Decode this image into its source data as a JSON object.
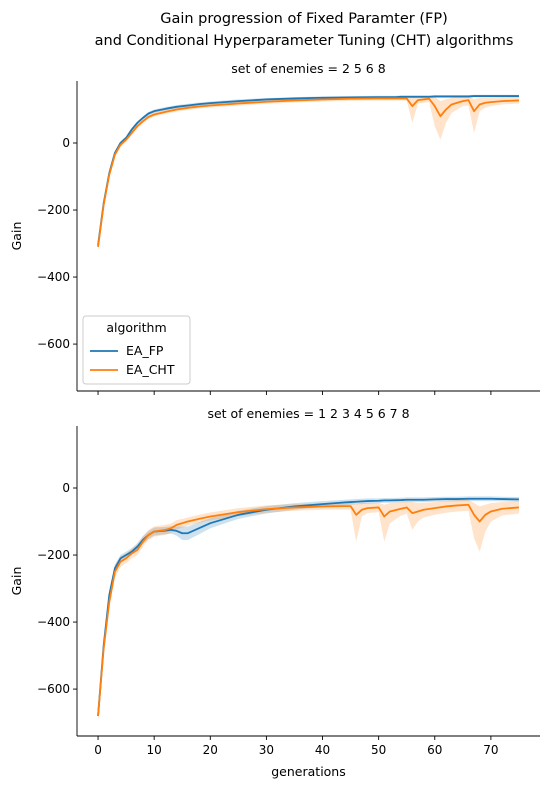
{
  "figure": {
    "title_line1": "Gain progression of Fixed Paramter (FP)",
    "title_line2": "and Conditional Hyperparameter Tuning (CHT) algorithms"
  },
  "legend": {
    "title": "algorithm",
    "placement": "lower-left (top panel)",
    "entries": [
      {
        "label": "EA_FP",
        "color": "#1f77b4"
      },
      {
        "label": "EA_CHT",
        "color": "#ff7f0e"
      }
    ]
  },
  "chart_data": [
    {
      "type": "line",
      "title": "set of enemies   = 2 5 6 8",
      "xlabel": "",
      "ylabel": "Gain",
      "xlim": [
        -3.75,
        78.75
      ],
      "ylim": [
        -740,
        185
      ],
      "yticks": [
        -600,
        -400,
        -200,
        0
      ],
      "yticklabels": [
        "−600",
        "−400",
        "−200",
        "0"
      ],
      "xticks": [
        0,
        10,
        20,
        30,
        40,
        50,
        60,
        70
      ],
      "xticklabels_visible": false,
      "grid": false,
      "x": [
        0,
        1,
        2,
        3,
        4,
        5,
        6,
        7,
        8,
        9,
        10,
        12,
        14,
        16,
        18,
        20,
        25,
        30,
        35,
        40,
        45,
        50,
        53,
        54,
        55,
        56,
        57,
        58,
        59,
        60,
        61,
        62,
        63,
        64,
        65,
        66,
        67,
        68,
        69,
        70,
        72,
        75
      ],
      "series": [
        {
          "name": "EA_FP",
          "color": "#1f77b4",
          "values": [
            -305,
            -180,
            -90,
            -30,
            0,
            15,
            40,
            60,
            75,
            88,
            95,
            102,
            108,
            112,
            116,
            119,
            125,
            130,
            133,
            135,
            136,
            137,
            137,
            138,
            138,
            138,
            138,
            138,
            138,
            139,
            139,
            139,
            139,
            139,
            139,
            139,
            140,
            140,
            140,
            140,
            140,
            140
          ],
          "ci_lower": [
            -312,
            -190,
            -98,
            -36,
            -6,
            10,
            35,
            55,
            70,
            83,
            90,
            97,
            103,
            107,
            111,
            114,
            120,
            126,
            129,
            131,
            132,
            133,
            133,
            134,
            134,
            134,
            134,
            134,
            134,
            135,
            135,
            135,
            135,
            135,
            135,
            135,
            136,
            136,
            136,
            136,
            136,
            136
          ],
          "ci_upper": [
            -298,
            -170,
            -82,
            -24,
            6,
            20,
            45,
            65,
            80,
            93,
            100,
            107,
            113,
            117,
            121,
            124,
            130,
            134,
            137,
            139,
            140,
            141,
            141,
            142,
            142,
            142,
            142,
            142,
            142,
            143,
            143,
            143,
            143,
            143,
            143,
            143,
            144,
            144,
            144,
            144,
            144,
            144
          ]
        },
        {
          "name": "EA_CHT",
          "color": "#ff7f0e",
          "values": [
            -310,
            -185,
            -95,
            -35,
            -5,
            10,
            30,
            50,
            65,
            78,
            85,
            93,
            100,
            105,
            109,
            112,
            118,
            123,
            127,
            130,
            132,
            133,
            133,
            133,
            133,
            110,
            128,
            130,
            132,
            110,
            80,
            100,
            115,
            120,
            125,
            128,
            95,
            115,
            120,
            122,
            125,
            127
          ],
          "ci_lower": [
            -318,
            -195,
            -104,
            -42,
            -12,
            4,
            24,
            44,
            59,
            72,
            79,
            87,
            94,
            99,
            103,
            106,
            112,
            117,
            121,
            124,
            126,
            127,
            127,
            127,
            127,
            60,
            118,
            120,
            122,
            50,
            10,
            60,
            90,
            100,
            110,
            112,
            30,
            95,
            105,
            110,
            115,
            118
          ],
          "ci_upper": [
            -302,
            -175,
            -86,
            -28,
            2,
            16,
            36,
            56,
            71,
            84,
            91,
            99,
            106,
            111,
            115,
            118,
            124,
            129,
            133,
            136,
            138,
            139,
            139,
            139,
            139,
            135,
            138,
            140,
            140,
            138,
            125,
            130,
            135,
            138,
            140,
            140,
            130,
            135,
            135,
            135,
            136,
            137
          ]
        }
      ]
    },
    {
      "type": "line",
      "title": "set of enemies   = 1 2 3 4 5 6 7 8",
      "xlabel": "generations",
      "ylabel": "Gain",
      "xlim": [
        -3.75,
        78.75
      ],
      "ylim": [
        -740,
        185
      ],
      "yticks": [
        -600,
        -400,
        -200,
        0
      ],
      "yticklabels": [
        "−600",
        "−400",
        "−200",
        "0"
      ],
      "xticks": [
        0,
        10,
        20,
        30,
        40,
        50,
        60,
        70
      ],
      "xticklabels": [
        "0",
        "10",
        "20",
        "30",
        "40",
        "50",
        "60",
        "70"
      ],
      "grid": false,
      "x": [
        0,
        1,
        2,
        3,
        4,
        5,
        6,
        7,
        8,
        9,
        10,
        12,
        13,
        14,
        15,
        16,
        18,
        20,
        25,
        30,
        35,
        40,
        44,
        45,
        46,
        47,
        48,
        50,
        51,
        52,
        54,
        55,
        56,
        57,
        58,
        60,
        62,
        64,
        66,
        67,
        68,
        69,
        70,
        72,
        75
      ],
      "series": [
        {
          "name": "EA_FP",
          "color": "#1f77b4",
          "values": [
            -680,
            -470,
            -320,
            -240,
            -210,
            -200,
            -190,
            -175,
            -155,
            -140,
            -130,
            -127,
            -125,
            -128,
            -135,
            -135,
            -120,
            -105,
            -80,
            -65,
            -55,
            -48,
            -43,
            -42,
            -41,
            -40,
            -39,
            -38,
            -37,
            -37,
            -36,
            -35,
            -35,
            -35,
            -35,
            -34,
            -33,
            -33,
            -32,
            -32,
            -32,
            -32,
            -32,
            -33,
            -34
          ],
          "ci_lower": [
            -690,
            -485,
            -335,
            -252,
            -220,
            -210,
            -200,
            -186,
            -167,
            -152,
            -142,
            -138,
            -136,
            -142,
            -155,
            -155,
            -138,
            -120,
            -92,
            -76,
            -65,
            -57,
            -51,
            -50,
            -49,
            -48,
            -47,
            -45,
            -44,
            -44,
            -43,
            -42,
            -42,
            -42,
            -42,
            -41,
            -40,
            -40,
            -39,
            -39,
            -39,
            -39,
            -39,
            -40,
            -41
          ],
          "ci_upper": [
            -670,
            -455,
            -305,
            -228,
            -200,
            -190,
            -180,
            -164,
            -143,
            -128,
            -118,
            -116,
            -114,
            -114,
            -115,
            -115,
            -102,
            -90,
            -68,
            -54,
            -45,
            -39,
            -35,
            -34,
            -33,
            -32,
            -31,
            -31,
            -30,
            -30,
            -29,
            -28,
            -28,
            -28,
            -28,
            -27,
            -26,
            -26,
            -25,
            -25,
            -25,
            -25,
            -25,
            -26,
            -27
          ]
        },
        {
          "name": "EA_CHT",
          "color": "#ff7f0e",
          "values": [
            -680,
            -480,
            -340,
            -250,
            -220,
            -210,
            -195,
            -185,
            -160,
            -140,
            -130,
            -125,
            -120,
            -110,
            -105,
            -100,
            -92,
            -85,
            -72,
            -63,
            -58,
            -55,
            -54,
            -54,
            -80,
            -65,
            -60,
            -58,
            -85,
            -70,
            -62,
            -58,
            -75,
            -70,
            -65,
            -60,
            -55,
            -52,
            -50,
            -80,
            -100,
            -80,
            -70,
            -62,
            -58
          ],
          "ci_lower": [
            -695,
            -500,
            -360,
            -268,
            -236,
            -224,
            -210,
            -200,
            -175,
            -155,
            -145,
            -140,
            -134,
            -124,
            -118,
            -112,
            -104,
            -97,
            -84,
            -74,
            -68,
            -65,
            -64,
            -64,
            -160,
            -85,
            -75,
            -72,
            -160,
            -105,
            -82,
            -76,
            -125,
            -100,
            -88,
            -80,
            -74,
            -70,
            -68,
            -150,
            -190,
            -130,
            -100,
            -82,
            -76
          ],
          "ci_upper": [
            -665,
            -460,
            -320,
            -232,
            -204,
            -196,
            -180,
            -170,
            -145,
            -125,
            -115,
            -110,
            -106,
            -96,
            -92,
            -88,
            -80,
            -73,
            -60,
            -52,
            -48,
            -45,
            -44,
            -44,
            -48,
            -45,
            -45,
            -44,
            -50,
            -45,
            -42,
            -40,
            -42,
            -45,
            -44,
            -42,
            -38,
            -36,
            -35,
            -45,
            -55,
            -50,
            -45,
            -42,
            -40
          ]
        }
      ]
    }
  ]
}
